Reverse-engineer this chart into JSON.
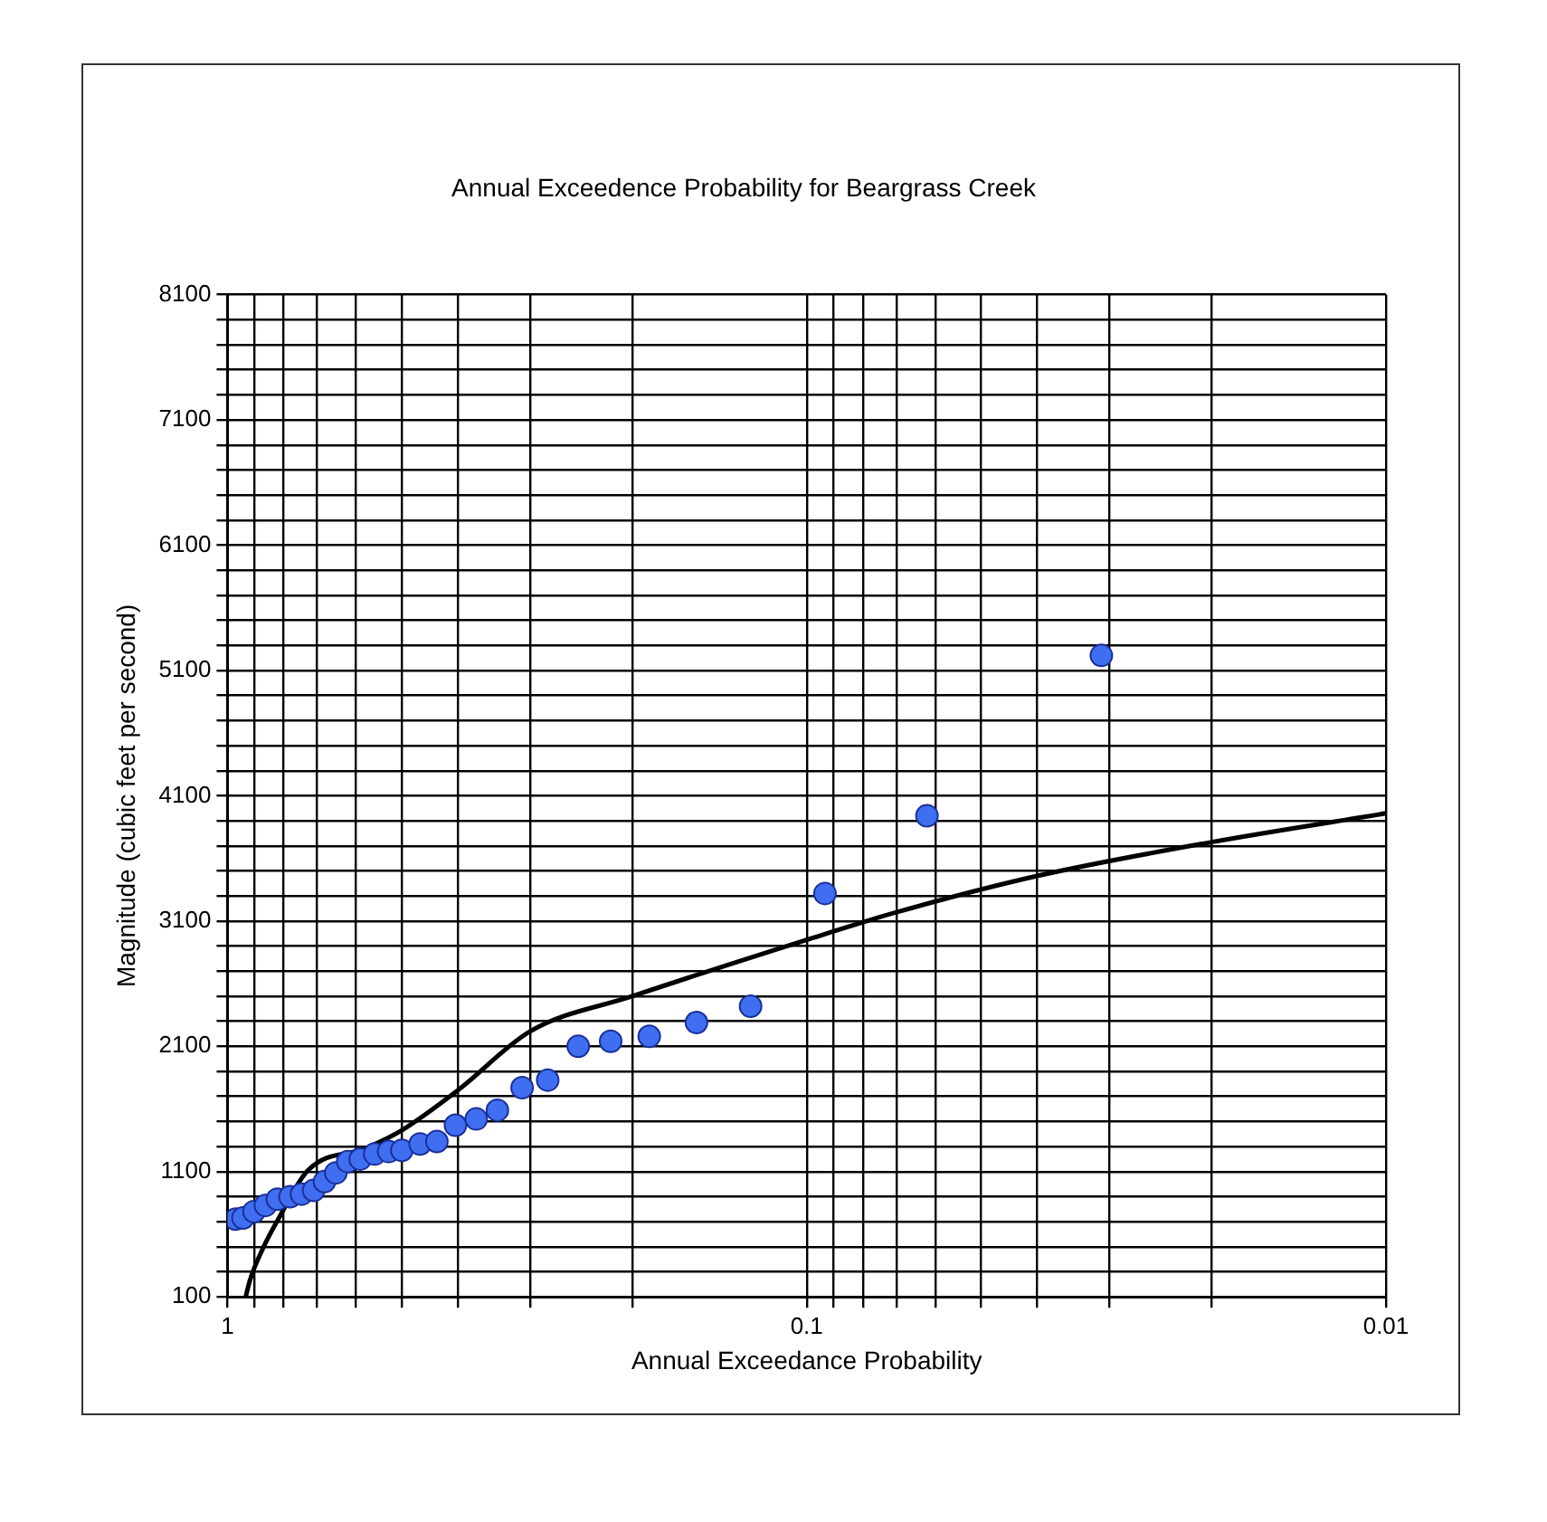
{
  "chart_data": {
    "type": "scatter",
    "title": "Annual Exceedence Probability for Beargrass Creek",
    "xlabel": "Annual Exceedance Probability",
    "ylabel": "Magnitude (cubic feet per second)",
    "log": "x",
    "grid": true,
    "legend": false,
    "marker": "circle",
    "xlim": [
      1,
      0.01
    ],
    "xticks": [
      1,
      {
        "value": 0.9,
        "label": null
      },
      {
        "value": 0.8,
        "label": null
      },
      {
        "value": 0.7,
        "label": null
      },
      {
        "value": 0.6,
        "label": null
      },
      {
        "value": 0.5,
        "label": null
      },
      {
        "value": 0.4,
        "label": null
      },
      {
        "value": 0.3,
        "label": null
      },
      {
        "value": 0.2,
        "label": null
      },
      0.1,
      {
        "value": 0.09,
        "label": null
      },
      {
        "value": 0.08,
        "label": null
      },
      {
        "value": 0.07,
        "label": null
      },
      {
        "value": 0.06,
        "label": null
      },
      {
        "value": 0.05,
        "label": null
      },
      {
        "value": 0.04,
        "label": null
      },
      {
        "value": 0.03,
        "label": null
      },
      {
        "value": 0.02,
        "label": null
      },
      0.01
    ],
    "ylim": [
      100,
      8100
    ],
    "yticks": [
      100,
      {
        "value": 300,
        "label": null
      },
      {
        "value": 500,
        "label": null
      },
      {
        "value": 700,
        "label": null
      },
      {
        "value": 900,
        "label": null
      },
      1100,
      {
        "value": 1300,
        "label": null
      },
      {
        "value": 1500,
        "label": null
      },
      {
        "value": 1700,
        "label": null
      },
      {
        "value": 1900,
        "label": null
      },
      2100,
      {
        "value": 2300,
        "label": null
      },
      {
        "value": 2500,
        "label": null
      },
      {
        "value": 2700,
        "label": null
      },
      {
        "value": 2900,
        "label": null
      },
      3100,
      {
        "value": 3300,
        "label": null
      },
      {
        "value": 3500,
        "label": null
      },
      {
        "value": 3700,
        "label": null
      },
      {
        "value": 3900,
        "label": null
      },
      4100,
      {
        "value": 4300,
        "label": null
      },
      {
        "value": 4500,
        "label": null
      },
      {
        "value": 4700,
        "label": null
      },
      {
        "value": 4900,
        "label": null
      },
      5100,
      {
        "value": 5300,
        "label": null
      },
      {
        "value": 5500,
        "label": null
      },
      {
        "value": 5700,
        "label": null
      },
      {
        "value": 5900,
        "label": null
      },
      6100,
      {
        "value": 6300,
        "label": null
      },
      {
        "value": 6500,
        "label": null
      },
      {
        "value": 6700,
        "label": null
      },
      {
        "value": 6900,
        "label": null
      },
      7100,
      {
        "value": 7300,
        "label": null
      },
      {
        "value": 7500,
        "label": null
      },
      {
        "value": 7700,
        "label": null
      },
      {
        "value": 7900,
        "label": null
      },
      8100
    ],
    "series": [
      {
        "type": "scatter",
        "color": "#3f6ff0",
        "x": [
          0.968,
          0.94,
          0.9,
          0.86,
          0.82,
          0.78,
          0.745,
          0.71,
          0.68,
          0.65,
          0.62,
          0.59,
          0.557,
          0.527,
          0.5,
          0.465,
          0.435,
          0.404,
          0.372,
          0.342,
          0.31,
          0.28,
          0.248,
          0.218,
          0.187,
          0.155,
          0.125,
          0.093,
          0.062,
          0.031
        ],
        "values": [
          720,
          730,
          780,
          830,
          880,
          900,
          920,
          950,
          1020,
          1090,
          1180,
          1200,
          1240,
          1260,
          1270,
          1320,
          1340,
          1470,
          1520,
          1590,
          1770,
          1830,
          2100,
          2140,
          2180,
          2290,
          2420,
          3320,
          3940,
          5220
        ]
      },
      {
        "type": "line",
        "color": "#000000",
        "marker": "none",
        "x": [
          0.93,
          0.915,
          0.87,
          0.815,
          0.726,
          0.575,
          0.5,
          0.4,
          0.3,
          0.2,
          0.1,
          0.07,
          0.04,
          0.02,
          0.01
        ],
        "values": [
          100,
          230,
          480,
          730,
          1110,
          1290,
          1430,
          1750,
          2220,
          2500,
          2950,
          3170,
          3460,
          3730,
          3960
        ]
      }
    ]
  }
}
